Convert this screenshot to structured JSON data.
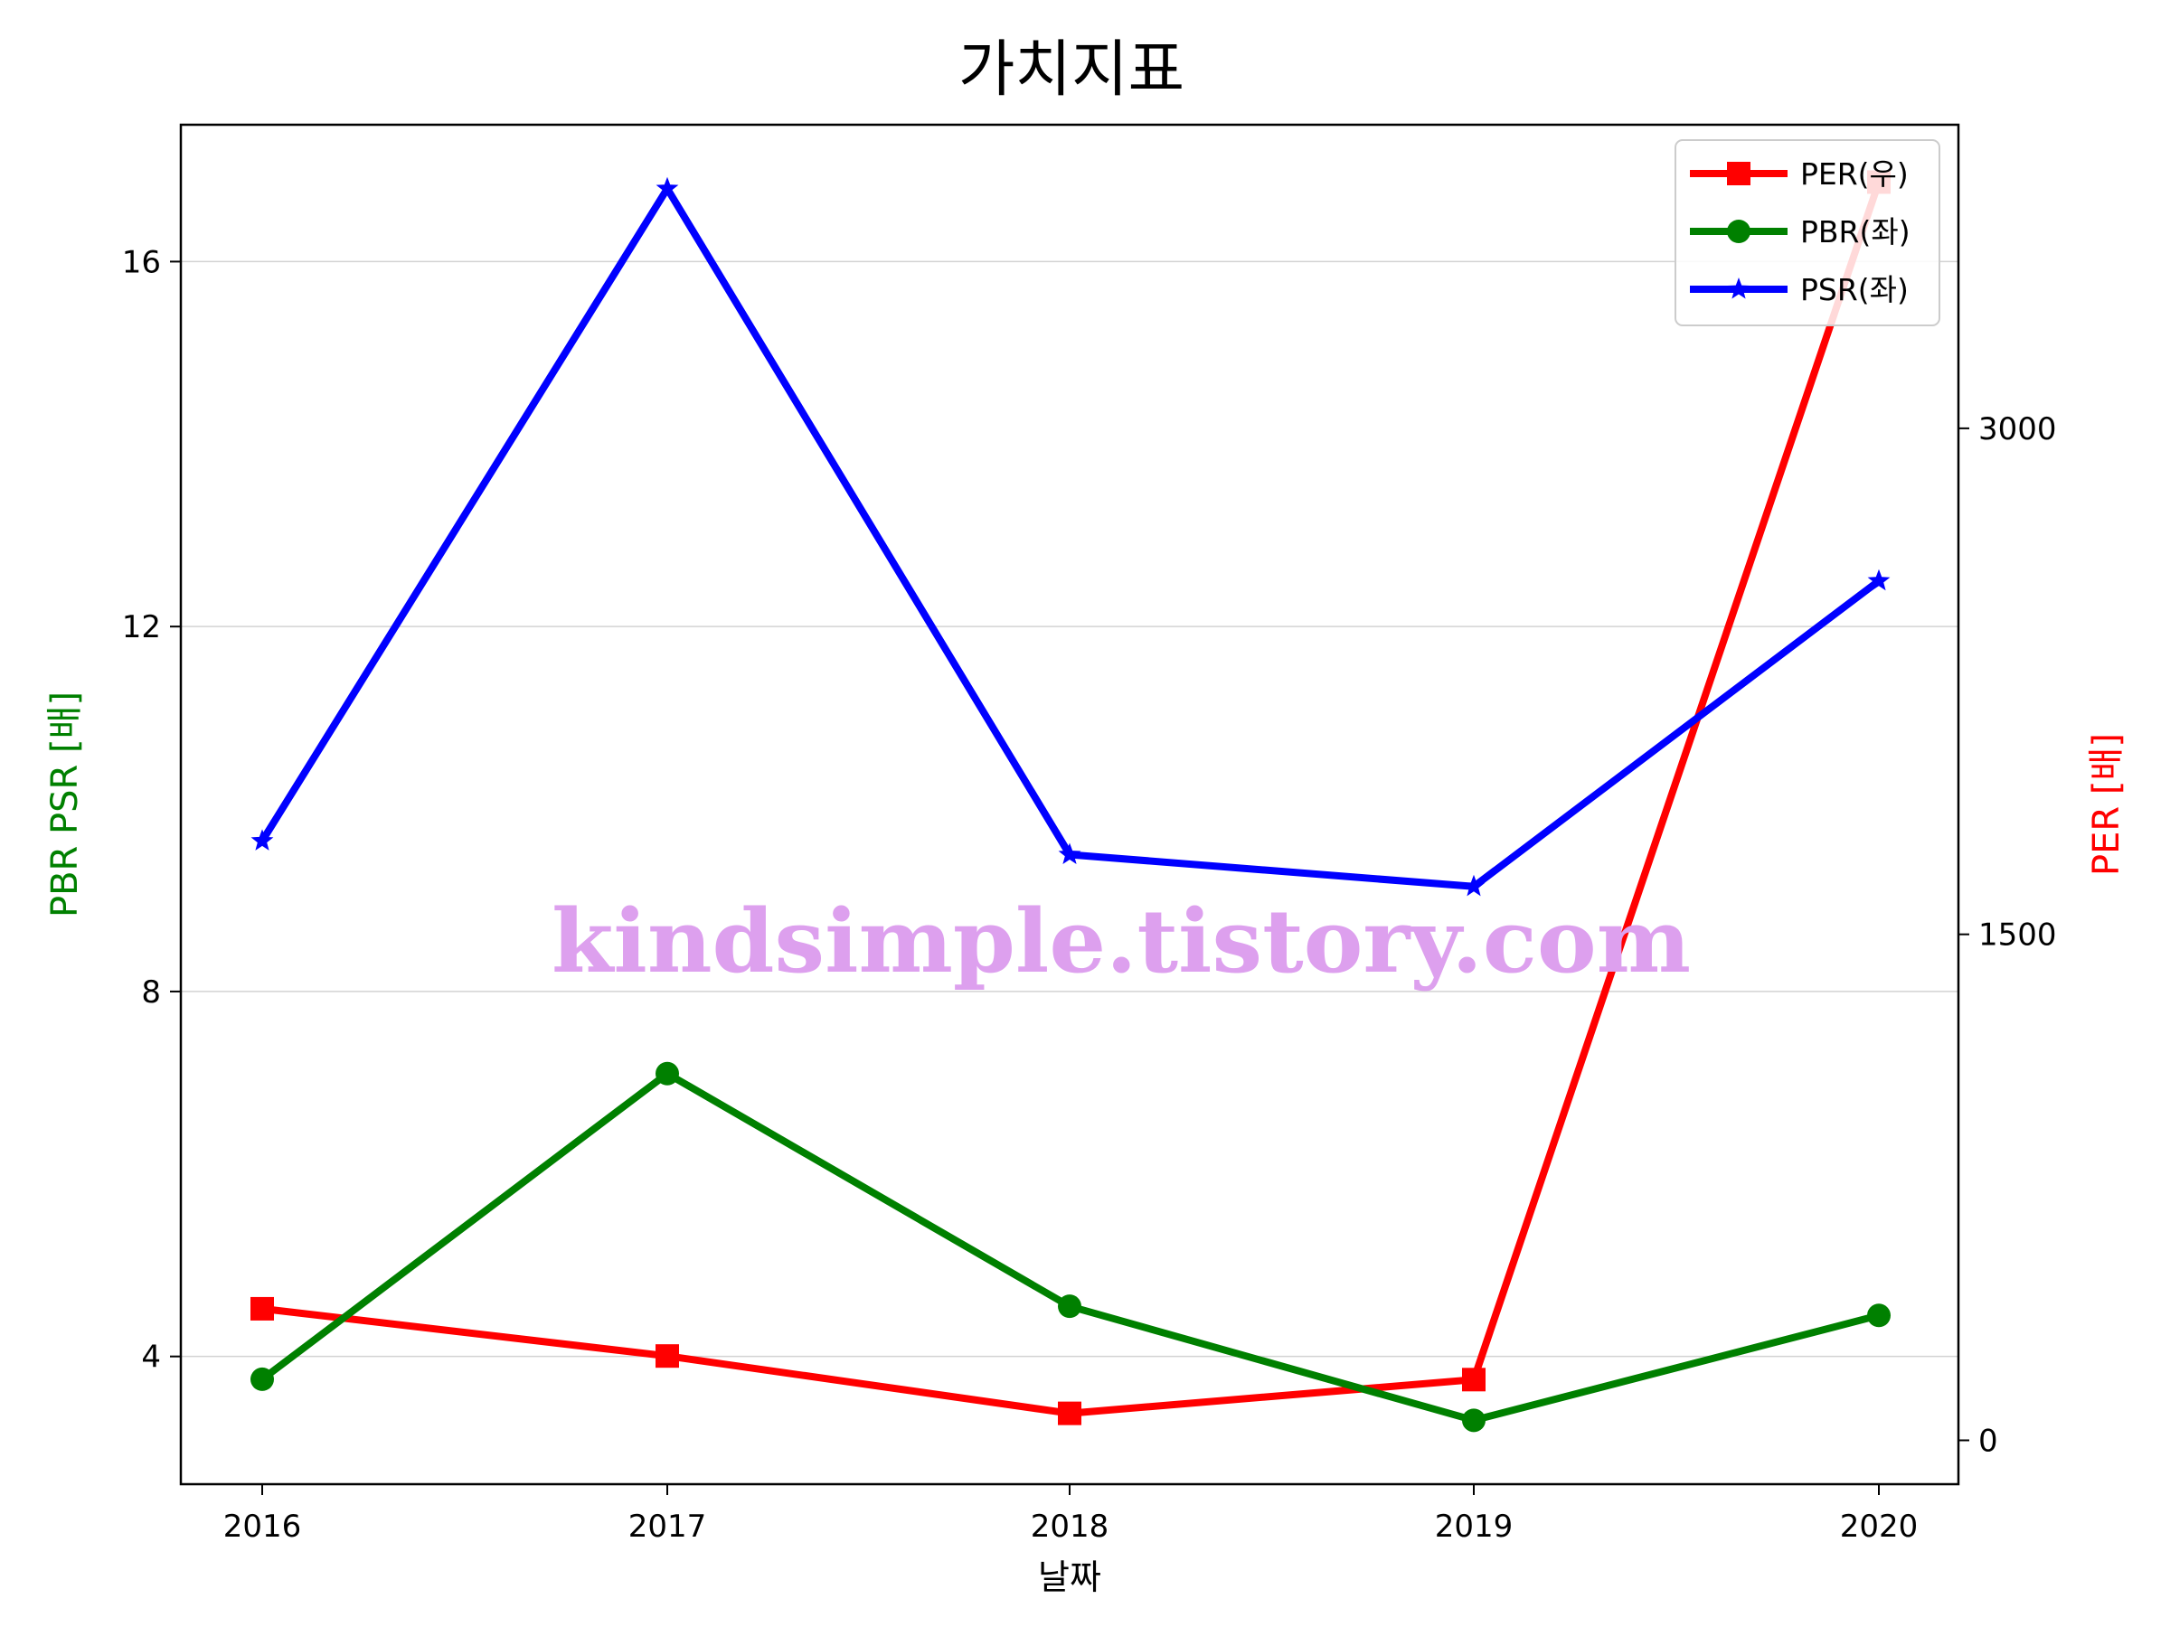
{
  "chart_data": {
    "type": "line",
    "title": "가치지표",
    "xlabel": "날짜",
    "ylabel_left": "PBR PSR [배]",
    "ylabel_right": "PER [배]",
    "categories": [
      "2016",
      "2017",
      "2018",
      "2019",
      "2020"
    ],
    "ylim_left": [
      2.6,
      17.5
    ],
    "ylim_right": [
      -130,
      3900
    ],
    "yticks_left": [
      "4",
      "8",
      "12",
      "16"
    ],
    "yticks_right": [
      "0",
      "1500",
      "3000"
    ],
    "grid": "horizontal",
    "legend_position": "top-right",
    "series": [
      {
        "name": "PER(우)",
        "axis": "right",
        "color": "#ff0000",
        "marker": "square",
        "values": [
          390,
          250,
          80,
          180,
          3730
        ]
      },
      {
        "name": "PBR(좌)",
        "axis": "left",
        "color": "#008000",
        "marker": "circle",
        "values": [
          3.75,
          7.1,
          4.55,
          3.3,
          4.45
        ]
      },
      {
        "name": "PSR(좌)",
        "axis": "left",
        "color": "#0000ff",
        "marker": "star",
        "values": [
          9.65,
          16.8,
          9.5,
          9.15,
          12.5
        ]
      }
    ],
    "watermark": "kindsimple.tistory.com"
  }
}
